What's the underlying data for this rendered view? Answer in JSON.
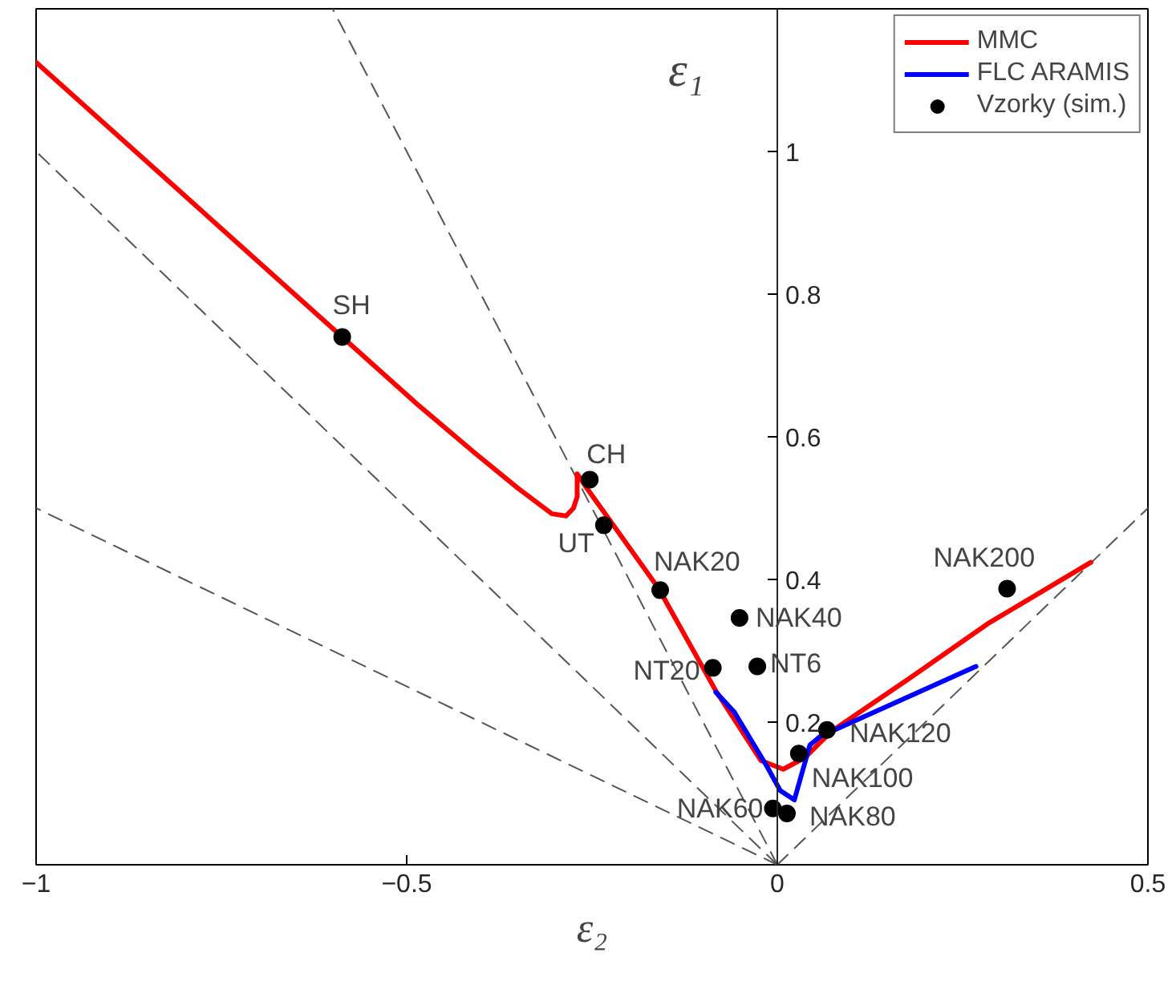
{
  "chart_data": {
    "type": "line",
    "xlabel": "ε₂",
    "ylabel": "ε₁",
    "xlim": [
      -1,
      0.5
    ],
    "ylim": [
      0,
      1.2
    ],
    "xticks": [
      -1,
      -0.5,
      0,
      0.5
    ],
    "yticks": [
      0.2,
      0.4,
      0.6,
      0.8,
      1
    ],
    "grid": false,
    "legend": "top right",
    "series": [
      {
        "line_style": "dashed",
        "color": "#555555",
        "x": [
          0,
          -0.6
        ],
        "values": [
          0,
          1.2
        ]
      },
      {
        "line_style": "dashed",
        "color": "#555555",
        "x": [
          0,
          -1
        ],
        "values": [
          0,
          1
        ]
      },
      {
        "line_style": "dashed",
        "color": "#555555",
        "x": [
          0,
          -1
        ],
        "values": [
          0,
          0.5
        ]
      },
      {
        "line_style": "dashed",
        "color": "#555555",
        "x": [
          0,
          0.5
        ],
        "values": [
          0,
          0.5
        ]
      },
      {
        "name": "MMC",
        "color": "#ff0000",
        "line_style": "solid",
        "x": [
          -1,
          -0.587,
          -0.485,
          -0.409,
          -0.35,
          -0.304,
          -0.285,
          -0.275,
          -0.27,
          -0.27,
          -0.259,
          -0.16,
          -0.083,
          -0.022,
          0.008,
          0.037,
          0.073,
          0.175,
          0.284,
          0.423
        ],
        "values": [
          1.125,
          0.74,
          0.645,
          0.578,
          0.528,
          0.492,
          0.489,
          0.5,
          0.516,
          0.548,
          0.531,
          0.387,
          0.244,
          0.146,
          0.134,
          0.15,
          0.187,
          0.259,
          0.338,
          0.424
        ]
      },
      {
        "name": "FLC ARAMIS",
        "color": "#0000ff",
        "line_style": "solid",
        "x": [
          -0.083,
          -0.058,
          -0.014,
          0.004,
          0.023,
          0.044,
          0.058,
          0.268
        ],
        "values": [
          0.242,
          0.214,
          0.138,
          0.104,
          0.091,
          0.168,
          0.18,
          0.278
        ]
      },
      {
        "type": "scatter",
        "name": "Vzorky (sim.)",
        "color": "#000000",
        "marker": "circle",
        "x": [
          -0.587,
          -0.253,
          -0.234,
          -0.158,
          -0.051,
          -0.087,
          -0.027,
          0.067,
          0.029,
          -0.006,
          0.013,
          0.31
        ],
        "values": [
          0.74,
          0.54,
          0.476,
          0.385,
          0.346,
          0.276,
          0.278,
          0.189,
          0.156,
          0.079,
          0.072,
          0.387
        ]
      }
    ],
    "annotations": [
      {
        "text": "SH",
        "x": -0.587,
        "y": 0.74
      },
      {
        "text": "CH",
        "x": -0.253,
        "y": 0.54
      },
      {
        "text": "UT",
        "x": -0.234,
        "y": 0.476
      },
      {
        "text": "NAK20",
        "x": -0.158,
        "y": 0.385
      },
      {
        "text": "NAK40",
        "x": -0.051,
        "y": 0.346
      },
      {
        "text": "NT20",
        "x": -0.087,
        "y": 0.276
      },
      {
        "text": "NT6",
        "x": -0.027,
        "y": 0.278
      },
      {
        "text": "NAK120",
        "x": 0.067,
        "y": 0.189
      },
      {
        "text": "NAK100",
        "x": 0.029,
        "y": 0.156
      },
      {
        "text": "NAK60",
        "x": -0.006,
        "y": 0.079
      },
      {
        "text": "NAK80",
        "x": 0.013,
        "y": 0.072
      },
      {
        "text": "NAK200",
        "x": 0.31,
        "y": 0.387
      }
    ]
  }
}
